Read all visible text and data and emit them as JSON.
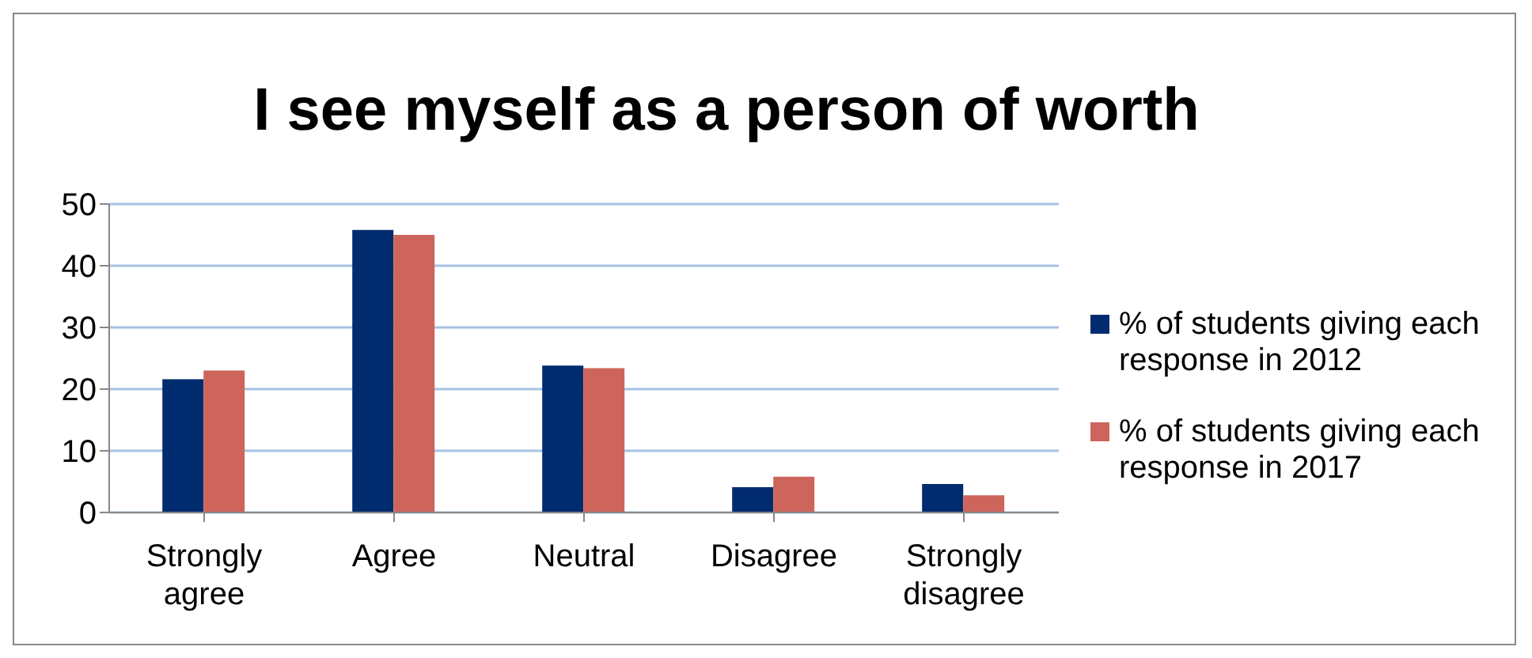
{
  "chart_data": {
    "type": "bar",
    "title": "I see myself as a person of worth",
    "categories": [
      "Strongly agree",
      "Agree",
      "Neutral",
      "Disagree",
      "Strongly disagree"
    ],
    "series": [
      {
        "name": "% of students giving each response in 2012",
        "color": "#002b6f",
        "values": [
          21.6,
          45.8,
          23.8,
          4.1,
          4.6
        ]
      },
      {
        "name": "% of students giving each response in 2017",
        "color": "#cd655c",
        "values": [
          23.0,
          45.0,
          23.4,
          5.8,
          2.8
        ]
      }
    ],
    "ylim": [
      0,
      50
    ],
    "yticks": [
      0,
      10,
      20,
      30,
      40,
      50
    ],
    "grid": "y",
    "legend": "right"
  }
}
